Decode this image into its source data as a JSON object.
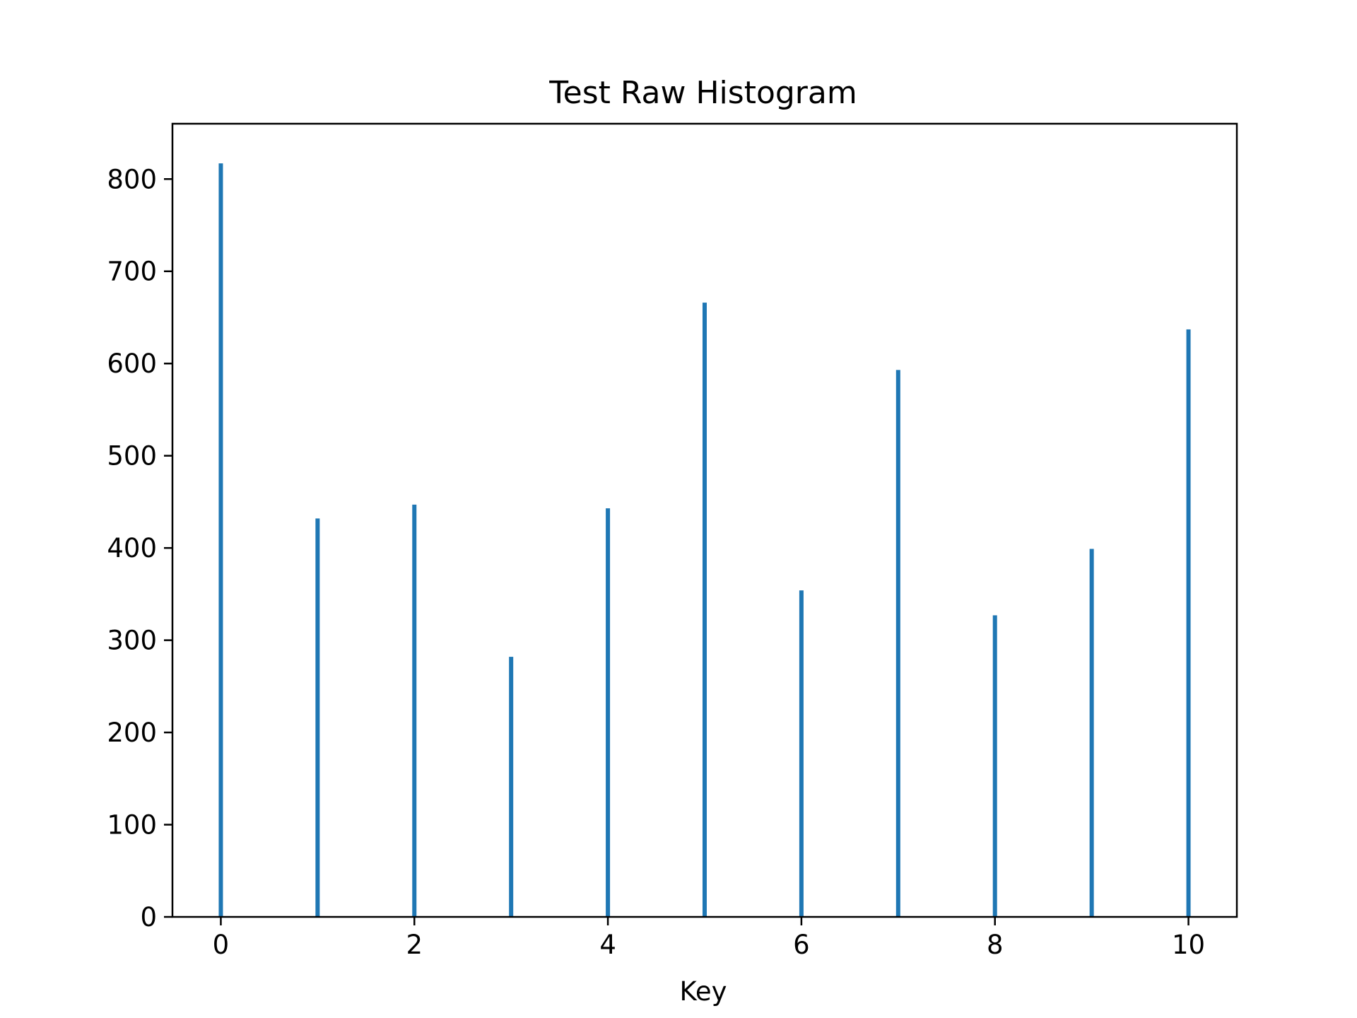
{
  "chart_data": {
    "type": "bar",
    "title": "Test Raw Histogram",
    "xlabel": "Key",
    "ylabel": "",
    "x": [
      0,
      1,
      2,
      3,
      4,
      5,
      6,
      7,
      8,
      9,
      10
    ],
    "values": [
      817,
      432,
      447,
      282,
      443,
      666,
      354,
      593,
      327,
      399,
      637
    ],
    "xlim": [
      -0.5,
      10.5
    ],
    "ylim": [
      0,
      860
    ],
    "xticks": [
      0,
      2,
      4,
      6,
      8,
      10
    ],
    "yticks": [
      0,
      100,
      200,
      300,
      400,
      500,
      600,
      700,
      800
    ],
    "grid": false,
    "bar_color": "#1f77b4"
  }
}
